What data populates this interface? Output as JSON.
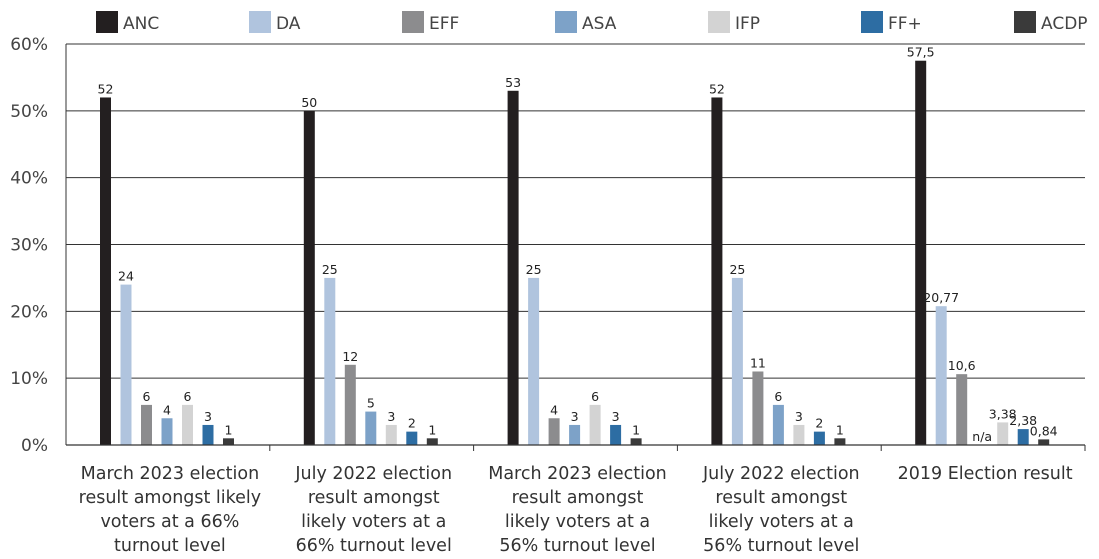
{
  "chart_data": {
    "type": "bar",
    "title": "",
    "xlabel": "",
    "ylabel": "",
    "ylim": [
      0,
      60
    ],
    "y_ticks": [
      0,
      10,
      20,
      30,
      40,
      50,
      60
    ],
    "y_tick_labels": [
      "0%",
      "10%",
      "20%",
      "30%",
      "40%",
      "50%",
      "60%"
    ],
    "grid": true,
    "legend_position": "top",
    "categories": [
      [
        "March 2023 election",
        "result amongst likely",
        "voters at a 66%",
        "turnout level"
      ],
      [
        "July 2022 election",
        "result amongst",
        "likely voters at a",
        "66% turnout level"
      ],
      [
        "March 2023 election",
        "result amongst",
        "likely voters at a",
        "56% turnout level"
      ],
      [
        "July 2022 election",
        "result amongst",
        "likely voters at a",
        "56% turnout level"
      ],
      [
        "2019 Election result"
      ]
    ],
    "series": [
      {
        "name": "ANC",
        "color": "#231f20",
        "values": [
          52,
          50,
          53,
          52,
          57.5
        ],
        "labels": [
          "52",
          "50",
          "53",
          "52",
          "57,5"
        ]
      },
      {
        "name": "DA",
        "color": "#b0c4de",
        "values": [
          24,
          25,
          25,
          25,
          20.77
        ],
        "labels": [
          "24",
          "25",
          "25",
          "25",
          "20,77"
        ]
      },
      {
        "name": "EFF",
        "color": "#8c8c8e",
        "values": [
          6,
          12,
          4,
          11,
          10.6
        ],
        "labels": [
          "6",
          "12",
          "4",
          "11",
          "10,6"
        ]
      },
      {
        "name": "ASA",
        "color": "#7da2c8",
        "values": [
          4,
          5,
          3,
          6,
          0
        ],
        "labels": [
          "4",
          "5",
          "3",
          "6",
          "n/a"
        ]
      },
      {
        "name": "IFP",
        "color": "#d3d3d3",
        "values": [
          6,
          3,
          6,
          3,
          3.38
        ],
        "labels": [
          "6",
          "3",
          "6",
          "3",
          "3,38"
        ]
      },
      {
        "name": "FF+",
        "color": "#2d6da3",
        "values": [
          3,
          2,
          3,
          2,
          2.38
        ],
        "labels": [
          "3",
          "2",
          "3",
          "2",
          "2,38"
        ]
      },
      {
        "name": "ACDP",
        "color": "#3a3a3a",
        "values": [
          1,
          1,
          1,
          1,
          0.84
        ],
        "labels": [
          "1",
          "1",
          "1",
          "1",
          "0,84"
        ]
      }
    ]
  }
}
